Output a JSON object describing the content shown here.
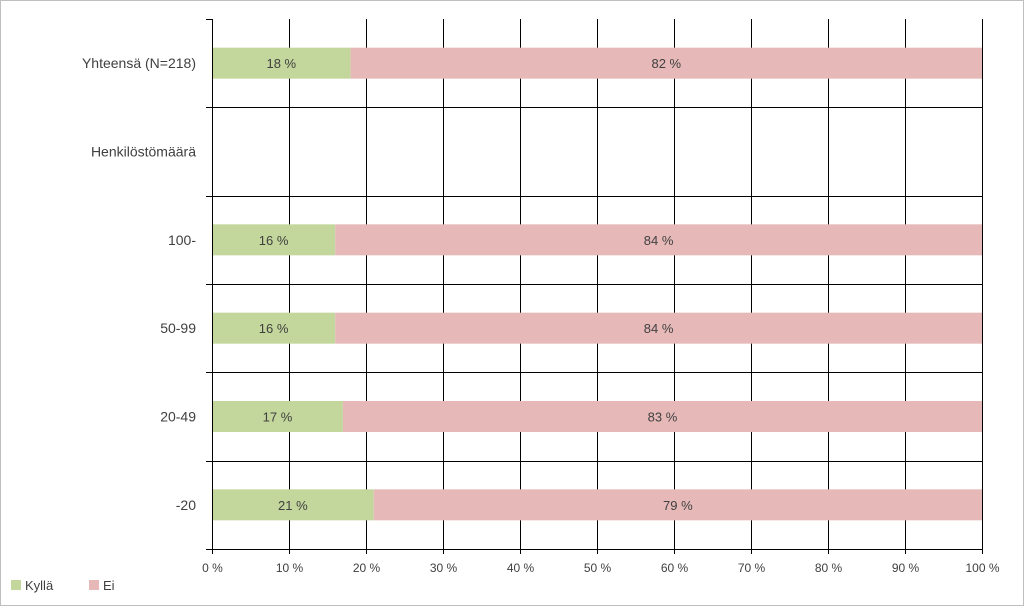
{
  "chart_data": {
    "type": "bar",
    "orientation": "horizontal",
    "stacked": true,
    "title": "",
    "xlabel": "",
    "ylabel": "",
    "categories": [
      "Yhteensä (N=218)",
      "Henkilöstömäärä",
      "100-",
      "50-99",
      "20-49",
      "-20"
    ],
    "series": [
      {
        "name": "Kyllä",
        "color": "#c3d69b",
        "values": [
          18,
          null,
          16,
          16,
          17,
          21
        ],
        "labels": [
          "18 %",
          "",
          "16 %",
          "16 %",
          "17 %",
          "21 %"
        ]
      },
      {
        "name": "Ei",
        "color": "#e6b9b8",
        "values": [
          82,
          null,
          84,
          84,
          83,
          79
        ],
        "labels": [
          "82 %",
          "",
          "84 %",
          "84 %",
          "83 %",
          "79 %"
        ]
      }
    ],
    "xlim": [
      0,
      100
    ],
    "x_ticks": [
      "0 %",
      "10 %",
      "20 %",
      "30 %",
      "40 %",
      "50 %",
      "60 %",
      "70 %",
      "80 %",
      "90 %",
      "100 %"
    ],
    "grid": true,
    "legend_position": "bottom-left"
  }
}
